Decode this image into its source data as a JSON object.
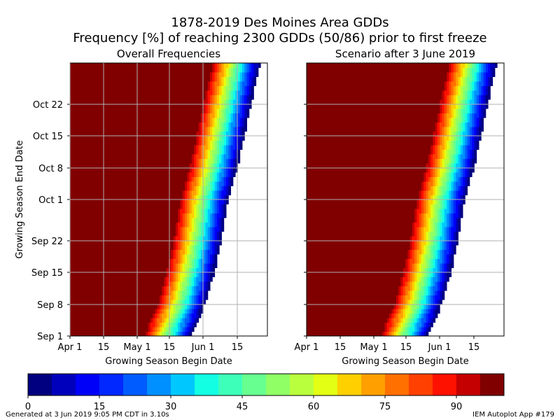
{
  "title_line1": "1878-2019 Des Moines Area GDDs",
  "title_line2": "Frequency [%] of reaching 2300 GDDs (50/86) prior to first freeze",
  "footer_left": "Generated at 3 Jun 2019 9:05 PM CDT in 3.10s",
  "footer_right": "IEM Autoplot App #179",
  "colors": {
    "colormap": [
      "#000080",
      "#0000bc",
      "#0000f8",
      "#0028ff",
      "#005cff",
      "#0090ff",
      "#00c8ff",
      "#13ffe3",
      "#3dffba",
      "#66ff90",
      "#90ff66",
      "#baff3d",
      "#e3ff13",
      "#ffd000",
      "#ffa000",
      "#ff7000",
      "#ff4000",
      "#ff1100",
      "#c40000",
      "#800000"
    ],
    "grid": "#b0b0b0"
  },
  "chart_data": [
    {
      "type": "heatmap",
      "title": "Overall Frequencies",
      "xlabel": "Growing Season Begin Date",
      "ylabel": "Growing Season End Date",
      "x_ticks": [
        "Apr 1",
        "15",
        "May 1",
        "15",
        "Jun 1",
        "15"
      ],
      "y_ticks": [
        "Sep 1",
        "Sep 8",
        "Sep 15",
        "Sep 22",
        "Oct 1",
        "Oct 8",
        "Oct 15",
        "Oct 22"
      ],
      "x_range": [
        "Apr 1",
        "Jun 26"
      ],
      "y_range": [
        "Sep 1",
        "Oct 31"
      ],
      "begin_50pct_at_end_date": [
        {
          "end_date": "Sep 1",
          "begin_date": "May 13"
        },
        {
          "end_date": "Sep 8",
          "begin_date": "May 19"
        },
        {
          "end_date": "Sep 15",
          "begin_date": "May 23"
        },
        {
          "end_date": "Sep 22",
          "begin_date": "May 26"
        },
        {
          "end_date": "Oct 1",
          "begin_date": "May 29"
        },
        {
          "end_date": "Oct 8",
          "begin_date": "Jun 2"
        },
        {
          "end_date": "Oct 15",
          "begin_date": "Jun 5"
        },
        {
          "end_date": "Oct 22",
          "begin_date": "Jun 8"
        },
        {
          "end_date": "Oct 31",
          "begin_date": "Jun 12"
        }
      ],
      "grid": true
    },
    {
      "type": "heatmap",
      "title": "Scenario after 3 June 2019",
      "xlabel": "Growing Season Begin Date",
      "ylabel": "",
      "x_ticks": [
        "Apr 1",
        "15",
        "May 1",
        "15",
        "Jun 1",
        "15"
      ],
      "y_ticks": [],
      "x_range": [
        "Apr 1",
        "Jun 26"
      ],
      "y_range": [
        "Sep 1",
        "Oct 31"
      ],
      "begin_50pct_at_end_date": [
        {
          "end_date": "Sep 1",
          "begin_date": "May 13"
        },
        {
          "end_date": "Sep 8",
          "begin_date": "May 19"
        },
        {
          "end_date": "Sep 15",
          "begin_date": "May 23"
        },
        {
          "end_date": "Sep 22",
          "begin_date": "May 26"
        },
        {
          "end_date": "Oct 1",
          "begin_date": "May 29"
        },
        {
          "end_date": "Oct 8",
          "begin_date": "Jun 2"
        },
        {
          "end_date": "Oct 15",
          "begin_date": "Jun 5"
        },
        {
          "end_date": "Oct 22",
          "begin_date": "Jun 8"
        },
        {
          "end_date": "Oct 31",
          "begin_date": "Jun 12"
        }
      ],
      "grid": true
    }
  ],
  "colorbar": {
    "ticks": [
      "0",
      "15",
      "30",
      "45",
      "60",
      "75",
      "90"
    ],
    "range": [
      0,
      100
    ],
    "bins": 20
  }
}
